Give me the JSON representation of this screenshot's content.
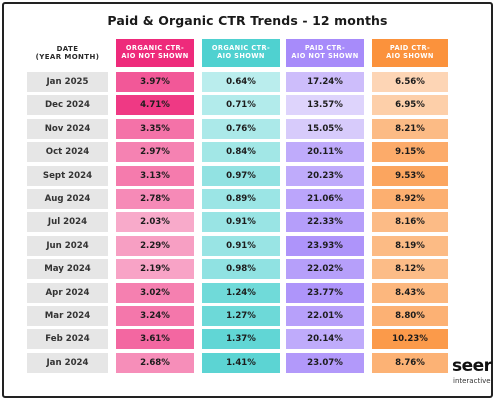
{
  "chart_data": {
    "type": "table",
    "title": "Paid & Organic CTR Trends - 12 months",
    "columns": [
      {
        "label": "DATE\n(YEAR MONTH)",
        "header_color": "#ffffff",
        "cell_color": "#e6e6e6"
      },
      {
        "label": "ORGANIC CTR-\nAIO NOT SHOWN",
        "header_color": "#ee2a7b",
        "cell_color": "#f472a8"
      },
      {
        "label": "ORGANIC CTR-\nAIO SHOWN",
        "header_color": "#4fd1d0",
        "cell_color": "#8fe3e1"
      },
      {
        "label": "PAID CTR-\nAIO NOT SHOWN",
        "header_color": "#a78bfa",
        "cell_color": "#cbbcf9"
      },
      {
        "label": "PAID CTR-\nAIO SHOWN",
        "header_color": "#fb923c",
        "cell_color": "#fbbd8a"
      }
    ],
    "rows": [
      {
        "date": "Jan 2025",
        "organic_not_shown": "3.97%",
        "organic_shown": "0.64%",
        "paid_not_shown": "17.24%",
        "paid_shown": "6.56%"
      },
      {
        "date": "Dec 2024",
        "organic_not_shown": "4.71%",
        "organic_shown": "0.71%",
        "paid_not_shown": "13.57%",
        "paid_shown": "6.95%"
      },
      {
        "date": "Nov 2024",
        "organic_not_shown": "3.35%",
        "organic_shown": "0.76%",
        "paid_not_shown": "15.05%",
        "paid_shown": "8.21%"
      },
      {
        "date": "Oct 2024",
        "organic_not_shown": "2.97%",
        "organic_shown": "0.84%",
        "paid_not_shown": "20.11%",
        "paid_shown": "9.15%"
      },
      {
        "date": "Sept 2024",
        "organic_not_shown": "3.13%",
        "organic_shown": "0.97%",
        "paid_not_shown": "20.23%",
        "paid_shown": "9.53%"
      },
      {
        "date": "Aug 2024",
        "organic_not_shown": "2.78%",
        "organic_shown": "0.89%",
        "paid_not_shown": "21.06%",
        "paid_shown": "8.92%"
      },
      {
        "date": "Jul 2024",
        "organic_not_shown": "2.03%",
        "organic_shown": "0.91%",
        "paid_not_shown": "22.33%",
        "paid_shown": "8.16%"
      },
      {
        "date": "Jun 2024",
        "organic_not_shown": "2.29%",
        "organic_shown": "0.91%",
        "paid_not_shown": "23.93%",
        "paid_shown": "8.19%"
      },
      {
        "date": "May 2024",
        "organic_not_shown": "2.19%",
        "organic_shown": "0.98%",
        "paid_not_shown": "22.02%",
        "paid_shown": "8.12%"
      },
      {
        "date": "Apr 2024",
        "organic_not_shown": "3.02%",
        "organic_shown": "1.24%",
        "paid_not_shown": "23.77%",
        "paid_shown": "8.43%"
      },
      {
        "date": "Mar 2024",
        "organic_not_shown": "3.24%",
        "organic_shown": "1.27%",
        "paid_not_shown": "22.01%",
        "paid_shown": "8.80%"
      },
      {
        "date": "Feb 2024",
        "organic_not_shown": "3.61%",
        "organic_shown": "1.37%",
        "paid_not_shown": "20.14%",
        "paid_shown": "10.23%"
      },
      {
        "date": "Jan 2024",
        "organic_not_shown": "2.68%",
        "organic_shown": "1.41%",
        "paid_not_shown": "23.07%",
        "paid_shown": "8.76%"
      }
    ]
  },
  "logo": {
    "main": "seer",
    "sub": "interactive"
  }
}
